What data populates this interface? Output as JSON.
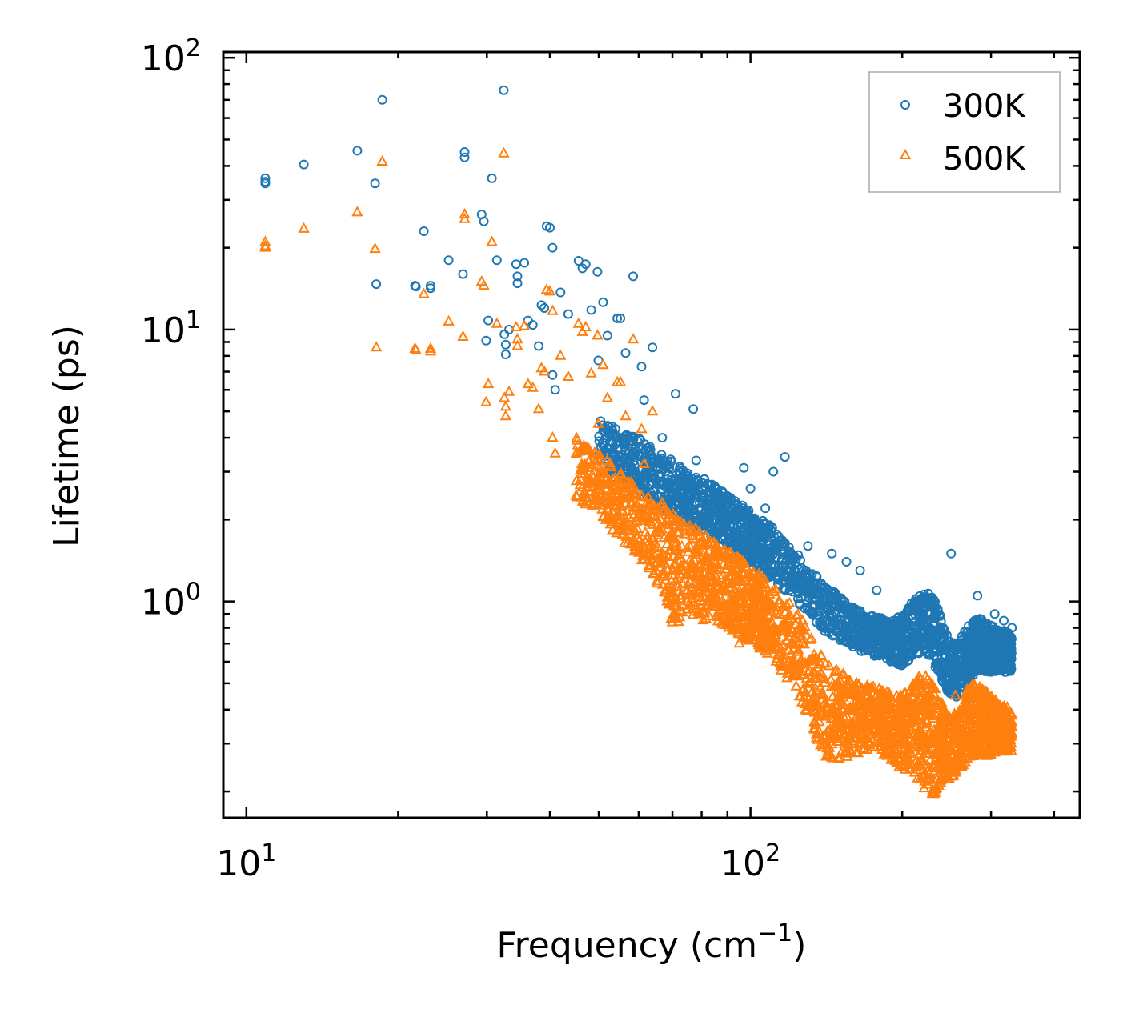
{
  "chart_data": {
    "type": "scatter",
    "title": "",
    "xlabel": "Frequency (cm",
    "xlabel_sup": "−1",
    "xlabel_suffix": ")",
    "ylabel": "Lifetime (ps)",
    "xscale": "log",
    "yscale": "log",
    "xlim": [
      9,
      450
    ],
    "ylim": [
      0.16,
      105
    ],
    "x_ticks": [
      {
        "value": 10,
        "base": "10",
        "exp": "1"
      },
      {
        "value": 100,
        "base": "10",
        "exp": "2"
      }
    ],
    "y_ticks": [
      {
        "value": 1,
        "base": "10",
        "exp": "0"
      },
      {
        "value": 10,
        "base": "10",
        "exp": "1"
      },
      {
        "value": 100,
        "base": "10",
        "exp": "2"
      }
    ],
    "legend_position": "top-right",
    "series": [
      {
        "name": "300K",
        "marker": "circle",
        "color": "#1f77b4",
        "points": [
          [
            10.9,
            36
          ],
          [
            10.9,
            35
          ],
          [
            10.9,
            34.5
          ],
          [
            13,
            40.5
          ],
          [
            16.6,
            45.5
          ],
          [
            18,
            34.5
          ],
          [
            18.1,
            14.7
          ],
          [
            18.6,
            70
          ],
          [
            21.6,
            14.5
          ],
          [
            21.7,
            14.4
          ],
          [
            22.5,
            23
          ],
          [
            23.2,
            14.2
          ],
          [
            23.2,
            14.5
          ],
          [
            25.2,
            18
          ],
          [
            26.9,
            16
          ],
          [
            27.1,
            45
          ],
          [
            27.1,
            43
          ],
          [
            29.3,
            26.5
          ],
          [
            29.6,
            25
          ],
          [
            29.9,
            9.1
          ],
          [
            30.2,
            10.8
          ],
          [
            30.7,
            36
          ],
          [
            31.4,
            18
          ],
          [
            32.4,
            76
          ],
          [
            32.5,
            9.6
          ],
          [
            32.7,
            8.8
          ],
          [
            32.7,
            8.1
          ],
          [
            33.2,
            10
          ],
          [
            34.3,
            17.4
          ],
          [
            34.5,
            15.7
          ],
          [
            34.5,
            14.8
          ],
          [
            35.6,
            17.6
          ],
          [
            36.2,
            10.8
          ],
          [
            37,
            10.4
          ],
          [
            38,
            8.7
          ],
          [
            38.5,
            12.3
          ],
          [
            39,
            12
          ],
          [
            39.4,
            24
          ],
          [
            40,
            23.7
          ],
          [
            40.5,
            20
          ],
          [
            40.5,
            6.8
          ],
          [
            41,
            6
          ],
          [
            42,
            13.7
          ],
          [
            43.5,
            11.4
          ],
          [
            45.6,
            17.9
          ],
          [
            46.4,
            16.8
          ],
          [
            47.1,
            17.4
          ],
          [
            48.3,
            11.8
          ],
          [
            49.7,
            16.3
          ],
          [
            49.9,
            7.7
          ],
          [
            51,
            12.6
          ],
          [
            52,
            9.5
          ],
          [
            54.4,
            11
          ],
          [
            55.2,
            11
          ],
          [
            56.5,
            8.2
          ],
          [
            58.5,
            15.7
          ],
          [
            60.8,
            7.3
          ],
          [
            61.5,
            5.5
          ],
          [
            63.9,
            8.6
          ],
          [
            66.8,
            4
          ],
          [
            71,
            5.8
          ],
          [
            77,
            5.1
          ],
          [
            78,
            3.3
          ],
          [
            88,
            2.5
          ],
          [
            90,
            2.3
          ],
          [
            97,
            3.1
          ],
          [
            100,
            2.6
          ],
          [
            107,
            2.2
          ],
          [
            111,
            3
          ],
          [
            117,
            3.4
          ],
          [
            130,
            1.6
          ],
          [
            145,
            1.5
          ],
          [
            155,
            1.4
          ],
          [
            165,
            1.3
          ],
          [
            178,
            1.1
          ],
          [
            194,
            0.85
          ],
          [
            215,
            0.95
          ],
          [
            250,
            1.5
          ],
          [
            282,
            1.05
          ],
          [
            305,
            0.9
          ],
          [
            318,
            0.85
          ],
          [
            330,
            0.8
          ]
        ],
        "band": [
          [
            50,
            4.8,
            3
          ],
          [
            55,
            4.2,
            2.8
          ],
          [
            60,
            4,
            2.5
          ],
          [
            65,
            3.6,
            2.3
          ],
          [
            70,
            3.3,
            2.1
          ],
          [
            75,
            3,
            1.95
          ],
          [
            80,
            2.9,
            1.8
          ],
          [
            85,
            2.7,
            1.7
          ],
          [
            90,
            2.5,
            1.6
          ],
          [
            95,
            2.3,
            1.5
          ],
          [
            100,
            2.15,
            1.4
          ],
          [
            105,
            2,
            1.3
          ],
          [
            110,
            1.9,
            1.2
          ],
          [
            120,
            1.6,
            1.05
          ],
          [
            130,
            1.35,
            0.9
          ],
          [
            140,
            1.15,
            0.78
          ],
          [
            150,
            1.05,
            0.72
          ],
          [
            160,
            0.95,
            0.68
          ],
          [
            170,
            0.9,
            0.64
          ],
          [
            180,
            0.88,
            0.62
          ],
          [
            190,
            0.84,
            0.6
          ],
          [
            200,
            0.9,
            0.58
          ],
          [
            210,
            1,
            0.62
          ],
          [
            220,
            1.1,
            0.66
          ],
          [
            230,
            1.05,
            0.6
          ],
          [
            240,
            0.85,
            0.5
          ],
          [
            250,
            0.7,
            0.44
          ],
          [
            260,
            0.72,
            0.45
          ],
          [
            270,
            0.82,
            0.5
          ],
          [
            280,
            0.88,
            0.55
          ],
          [
            290,
            0.85,
            0.55
          ],
          [
            300,
            0.82,
            0.55
          ],
          [
            310,
            0.8,
            0.55
          ],
          [
            320,
            0.78,
            0.55
          ],
          [
            330,
            0.75,
            0.55
          ]
        ]
      },
      {
        "name": "500K",
        "marker": "triangle",
        "color": "#ff7f0e",
        "points": [
          [
            10.9,
            21
          ],
          [
            10.9,
            20.3
          ],
          [
            10.9,
            20
          ],
          [
            13,
            23.5
          ],
          [
            16.6,
            27
          ],
          [
            18,
            19.8
          ],
          [
            18.1,
            8.6
          ],
          [
            18.6,
            41.5
          ],
          [
            21.6,
            8.5
          ],
          [
            21.7,
            8.4
          ],
          [
            22.5,
            13.5
          ],
          [
            23.2,
            8.3
          ],
          [
            23.2,
            8.5
          ],
          [
            25.2,
            10.7
          ],
          [
            26.9,
            9.4
          ],
          [
            27.1,
            26.5
          ],
          [
            27.1,
            25.5
          ],
          [
            29.3,
            15
          ],
          [
            29.6,
            14.5
          ],
          [
            29.9,
            5.4
          ],
          [
            30.2,
            6.3
          ],
          [
            30.7,
            21
          ],
          [
            31.4,
            10.5
          ],
          [
            32.4,
            44.5
          ],
          [
            32.5,
            5.6
          ],
          [
            32.7,
            5.2
          ],
          [
            32.7,
            4.8
          ],
          [
            33.2,
            5.9
          ],
          [
            34.3,
            10.2
          ],
          [
            34.5,
            9.2
          ],
          [
            34.5,
            8.7
          ],
          [
            35.6,
            10.3
          ],
          [
            36.2,
            6.3
          ],
          [
            37,
            6.1
          ],
          [
            38,
            5.1
          ],
          [
            38.5,
            7.2
          ],
          [
            39,
            7
          ],
          [
            39.4,
            14
          ],
          [
            40,
            13.8
          ],
          [
            40.5,
            11.7
          ],
          [
            40.5,
            4
          ],
          [
            41,
            3.5
          ],
          [
            42,
            8
          ],
          [
            43.5,
            6.7
          ],
          [
            45.6,
            10.5
          ],
          [
            46.4,
            9.8
          ],
          [
            47.1,
            10.2
          ],
          [
            48.3,
            6.9
          ],
          [
            49.7,
            9.5
          ],
          [
            49.9,
            4.5
          ],
          [
            51,
            7.4
          ],
          [
            52,
            5.6
          ],
          [
            54.4,
            6.4
          ],
          [
            55.2,
            6.4
          ],
          [
            56.5,
            4.8
          ],
          [
            58.5,
            9.2
          ],
          [
            60.8,
            4.3
          ],
          [
            61.5,
            3.2
          ],
          [
            63.9,
            5
          ],
          [
            66.8,
            2.3
          ],
          [
            71,
            1.9
          ],
          [
            77,
            1.7
          ],
          [
            80,
            1.2
          ],
          [
            88,
            1.1
          ],
          [
            95,
            0.7
          ],
          [
            100,
            0.9
          ],
          [
            105,
            0.75
          ],
          [
            115,
            0.65
          ],
          [
            125,
            0.55
          ],
          [
            140,
            0.32
          ],
          [
            150,
            0.36
          ],
          [
            165,
            0.42
          ],
          [
            178,
            0.38
          ],
          [
            195,
            0.36
          ],
          [
            215,
            0.4
          ],
          [
            225,
            0.22
          ],
          [
            240,
            0.3
          ],
          [
            255,
            0.45
          ],
          [
            270,
            0.45
          ],
          [
            290,
            0.42
          ],
          [
            310,
            0.38
          ],
          [
            330,
            0.36
          ]
        ],
        "band": [
          [
            45,
            4,
            2.4
          ],
          [
            50,
            3.5,
            2.1
          ],
          [
            55,
            3,
            1.7
          ],
          [
            60,
            2.6,
            1.45
          ],
          [
            65,
            2.3,
            1.2
          ],
          [
            70,
            2.1,
            0.8
          ],
          [
            75,
            1.95,
            0.9
          ],
          [
            80,
            1.8,
            0.85
          ],
          [
            85,
            1.65,
            0.85
          ],
          [
            90,
            1.55,
            0.8
          ],
          [
            95,
            1.45,
            0.75
          ],
          [
            100,
            1.35,
            0.7
          ],
          [
            105,
            1.25,
            0.66
          ],
          [
            110,
            1.15,
            0.62
          ],
          [
            120,
            1,
            0.5
          ],
          [
            130,
            0.8,
            0.38
          ],
          [
            140,
            0.62,
            0.26
          ],
          [
            150,
            0.55,
            0.26
          ],
          [
            160,
            0.52,
            0.27
          ],
          [
            170,
            0.5,
            0.28
          ],
          [
            180,
            0.48,
            0.28
          ],
          [
            190,
            0.46,
            0.26
          ],
          [
            200,
            0.45,
            0.24
          ],
          [
            210,
            0.5,
            0.24
          ],
          [
            220,
            0.55,
            0.2
          ],
          [
            230,
            0.5,
            0.19
          ],
          [
            240,
            0.42,
            0.22
          ],
          [
            250,
            0.38,
            0.22
          ],
          [
            260,
            0.4,
            0.24
          ],
          [
            270,
            0.48,
            0.26
          ],
          [
            280,
            0.5,
            0.27
          ],
          [
            290,
            0.48,
            0.27
          ],
          [
            300,
            0.45,
            0.27
          ],
          [
            310,
            0.43,
            0.28
          ],
          [
            320,
            0.42,
            0.28
          ],
          [
            330,
            0.4,
            0.28
          ]
        ]
      }
    ]
  }
}
